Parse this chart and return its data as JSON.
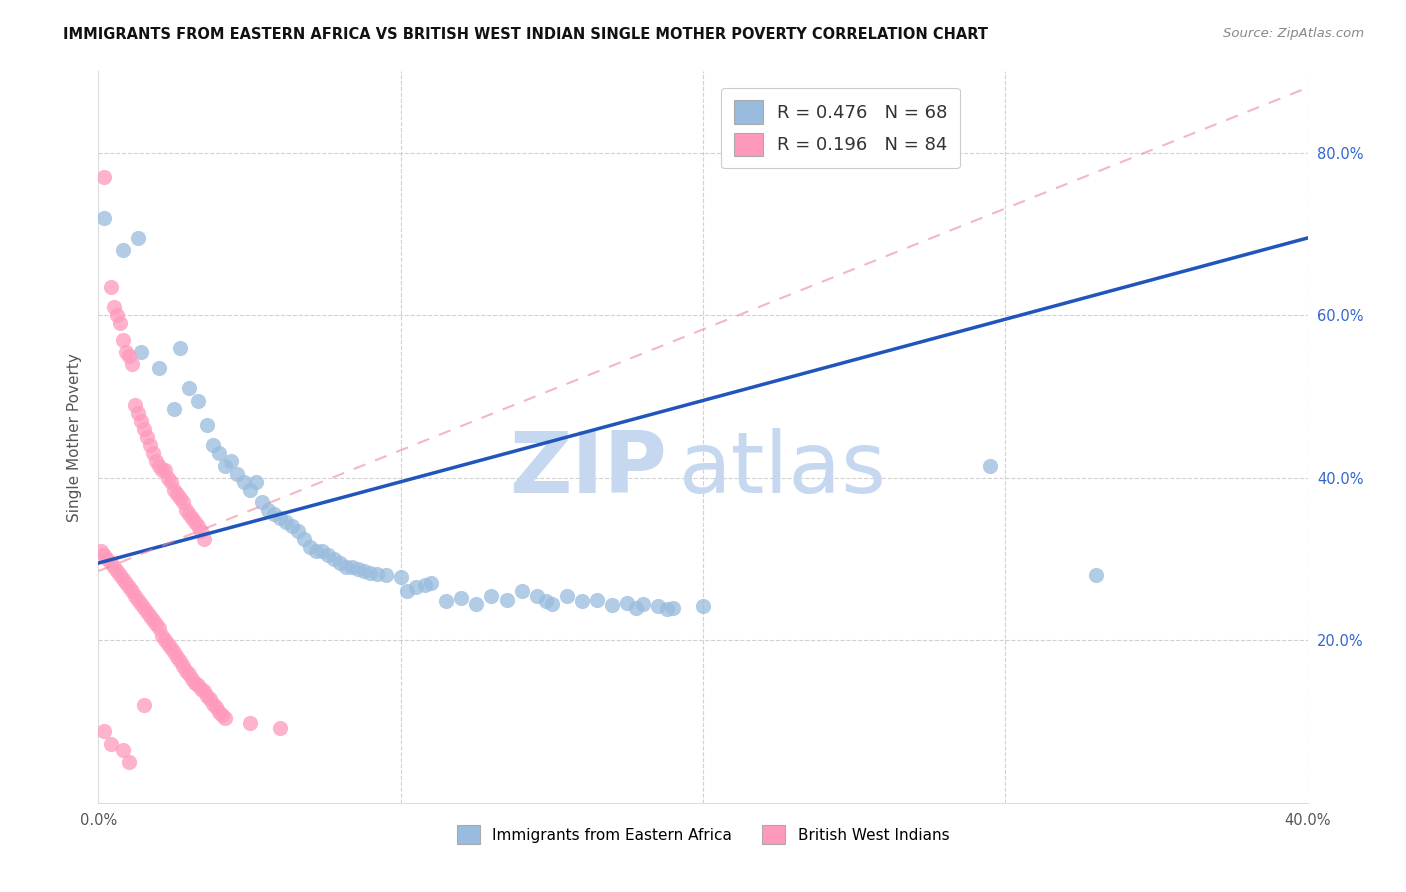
{
  "title": "IMMIGRANTS FROM EASTERN AFRICA VS BRITISH WEST INDIAN SINGLE MOTHER POVERTY CORRELATION CHART",
  "source": "Source: ZipAtlas.com",
  "ylabel": "Single Mother Poverty",
  "color_blue": "#99BBDD",
  "color_pink": "#FF99BB",
  "line_blue": "#2255BB",
  "line_pink": "#EE8899",
  "watermark_zip": "ZIP",
  "watermark_atlas": "atlas",
  "xlim": [
    0.0,
    0.4
  ],
  "ylim": [
    0.0,
    0.9
  ],
  "xticks": [
    0.0,
    0.1,
    0.2,
    0.3,
    0.4
  ],
  "yticks": [
    0.2,
    0.4,
    0.6,
    0.8
  ],
  "blue_line_y0": 0.295,
  "blue_line_y1": 0.695,
  "pink_line_y0": 0.285,
  "pink_line_y1": 0.88,
  "blue_points": [
    [
      0.002,
      0.72
    ],
    [
      0.008,
      0.68
    ],
    [
      0.013,
      0.695
    ],
    [
      0.014,
      0.555
    ],
    [
      0.02,
      0.535
    ],
    [
      0.025,
      0.485
    ],
    [
      0.027,
      0.56
    ],
    [
      0.03,
      0.51
    ],
    [
      0.033,
      0.495
    ],
    [
      0.036,
      0.465
    ],
    [
      0.038,
      0.44
    ],
    [
      0.04,
      0.43
    ],
    [
      0.042,
      0.415
    ],
    [
      0.044,
      0.42
    ],
    [
      0.046,
      0.405
    ],
    [
      0.048,
      0.395
    ],
    [
      0.05,
      0.385
    ],
    [
      0.052,
      0.395
    ],
    [
      0.054,
      0.37
    ],
    [
      0.056,
      0.36
    ],
    [
      0.058,
      0.355
    ],
    [
      0.06,
      0.35
    ],
    [
      0.062,
      0.345
    ],
    [
      0.064,
      0.34
    ],
    [
      0.066,
      0.335
    ],
    [
      0.068,
      0.325
    ],
    [
      0.07,
      0.315
    ],
    [
      0.072,
      0.31
    ],
    [
      0.074,
      0.31
    ],
    [
      0.076,
      0.305
    ],
    [
      0.078,
      0.3
    ],
    [
      0.08,
      0.295
    ],
    [
      0.082,
      0.29
    ],
    [
      0.084,
      0.29
    ],
    [
      0.086,
      0.288
    ],
    [
      0.088,
      0.285
    ],
    [
      0.09,
      0.283
    ],
    [
      0.092,
      0.282
    ],
    [
      0.095,
      0.28
    ],
    [
      0.1,
      0.278
    ],
    [
      0.102,
      0.26
    ],
    [
      0.105,
      0.265
    ],
    [
      0.108,
      0.268
    ],
    [
      0.11,
      0.27
    ],
    [
      0.115,
      0.248
    ],
    [
      0.12,
      0.252
    ],
    [
      0.125,
      0.245
    ],
    [
      0.13,
      0.255
    ],
    [
      0.135,
      0.25
    ],
    [
      0.14,
      0.26
    ],
    [
      0.145,
      0.255
    ],
    [
      0.148,
      0.248
    ],
    [
      0.15,
      0.245
    ],
    [
      0.155,
      0.255
    ],
    [
      0.16,
      0.248
    ],
    [
      0.165,
      0.25
    ],
    [
      0.17,
      0.243
    ],
    [
      0.175,
      0.246
    ],
    [
      0.178,
      0.24
    ],
    [
      0.18,
      0.245
    ],
    [
      0.185,
      0.242
    ],
    [
      0.188,
      0.238
    ],
    [
      0.19,
      0.24
    ],
    [
      0.2,
      0.242
    ],
    [
      0.295,
      0.415
    ],
    [
      0.33,
      0.28
    ]
  ],
  "pink_points": [
    [
      0.002,
      0.77
    ],
    [
      0.004,
      0.635
    ],
    [
      0.005,
      0.61
    ],
    [
      0.006,
      0.6
    ],
    [
      0.007,
      0.59
    ],
    [
      0.008,
      0.57
    ],
    [
      0.009,
      0.555
    ],
    [
      0.01,
      0.55
    ],
    [
      0.011,
      0.54
    ],
    [
      0.012,
      0.49
    ],
    [
      0.013,
      0.48
    ],
    [
      0.014,
      0.47
    ],
    [
      0.015,
      0.46
    ],
    [
      0.016,
      0.45
    ],
    [
      0.017,
      0.44
    ],
    [
      0.018,
      0.43
    ],
    [
      0.019,
      0.42
    ],
    [
      0.02,
      0.415
    ],
    [
      0.021,
      0.41
    ],
    [
      0.022,
      0.41
    ],
    [
      0.023,
      0.4
    ],
    [
      0.024,
      0.395
    ],
    [
      0.025,
      0.385
    ],
    [
      0.026,
      0.38
    ],
    [
      0.027,
      0.375
    ],
    [
      0.028,
      0.37
    ],
    [
      0.029,
      0.36
    ],
    [
      0.03,
      0.355
    ],
    [
      0.031,
      0.35
    ],
    [
      0.032,
      0.345
    ],
    [
      0.033,
      0.34
    ],
    [
      0.034,
      0.335
    ],
    [
      0.035,
      0.325
    ],
    [
      0.001,
      0.31
    ],
    [
      0.002,
      0.305
    ],
    [
      0.003,
      0.3
    ],
    [
      0.004,
      0.295
    ],
    [
      0.005,
      0.29
    ],
    [
      0.006,
      0.285
    ],
    [
      0.007,
      0.28
    ],
    [
      0.008,
      0.275
    ],
    [
      0.009,
      0.27
    ],
    [
      0.01,
      0.265
    ],
    [
      0.011,
      0.26
    ],
    [
      0.012,
      0.255
    ],
    [
      0.013,
      0.25
    ],
    [
      0.014,
      0.245
    ],
    [
      0.015,
      0.24
    ],
    [
      0.016,
      0.235
    ],
    [
      0.017,
      0.23
    ],
    [
      0.018,
      0.225
    ],
    [
      0.019,
      0.22
    ],
    [
      0.02,
      0.215
    ],
    [
      0.021,
      0.205
    ],
    [
      0.022,
      0.2
    ],
    [
      0.023,
      0.195
    ],
    [
      0.024,
      0.19
    ],
    [
      0.025,
      0.185
    ],
    [
      0.026,
      0.18
    ],
    [
      0.027,
      0.175
    ],
    [
      0.028,
      0.168
    ],
    [
      0.029,
      0.162
    ],
    [
      0.03,
      0.158
    ],
    [
      0.031,
      0.152
    ],
    [
      0.032,
      0.148
    ],
    [
      0.033,
      0.145
    ],
    [
      0.034,
      0.14
    ],
    [
      0.035,
      0.138
    ],
    [
      0.036,
      0.132
    ],
    [
      0.037,
      0.128
    ],
    [
      0.038,
      0.122
    ],
    [
      0.039,
      0.118
    ],
    [
      0.04,
      0.112
    ],
    [
      0.041,
      0.108
    ],
    [
      0.042,
      0.104
    ],
    [
      0.05,
      0.098
    ],
    [
      0.06,
      0.092
    ],
    [
      0.002,
      0.088
    ],
    [
      0.004,
      0.072
    ],
    [
      0.008,
      0.065
    ],
    [
      0.01,
      0.05
    ],
    [
      0.015,
      0.12
    ]
  ]
}
